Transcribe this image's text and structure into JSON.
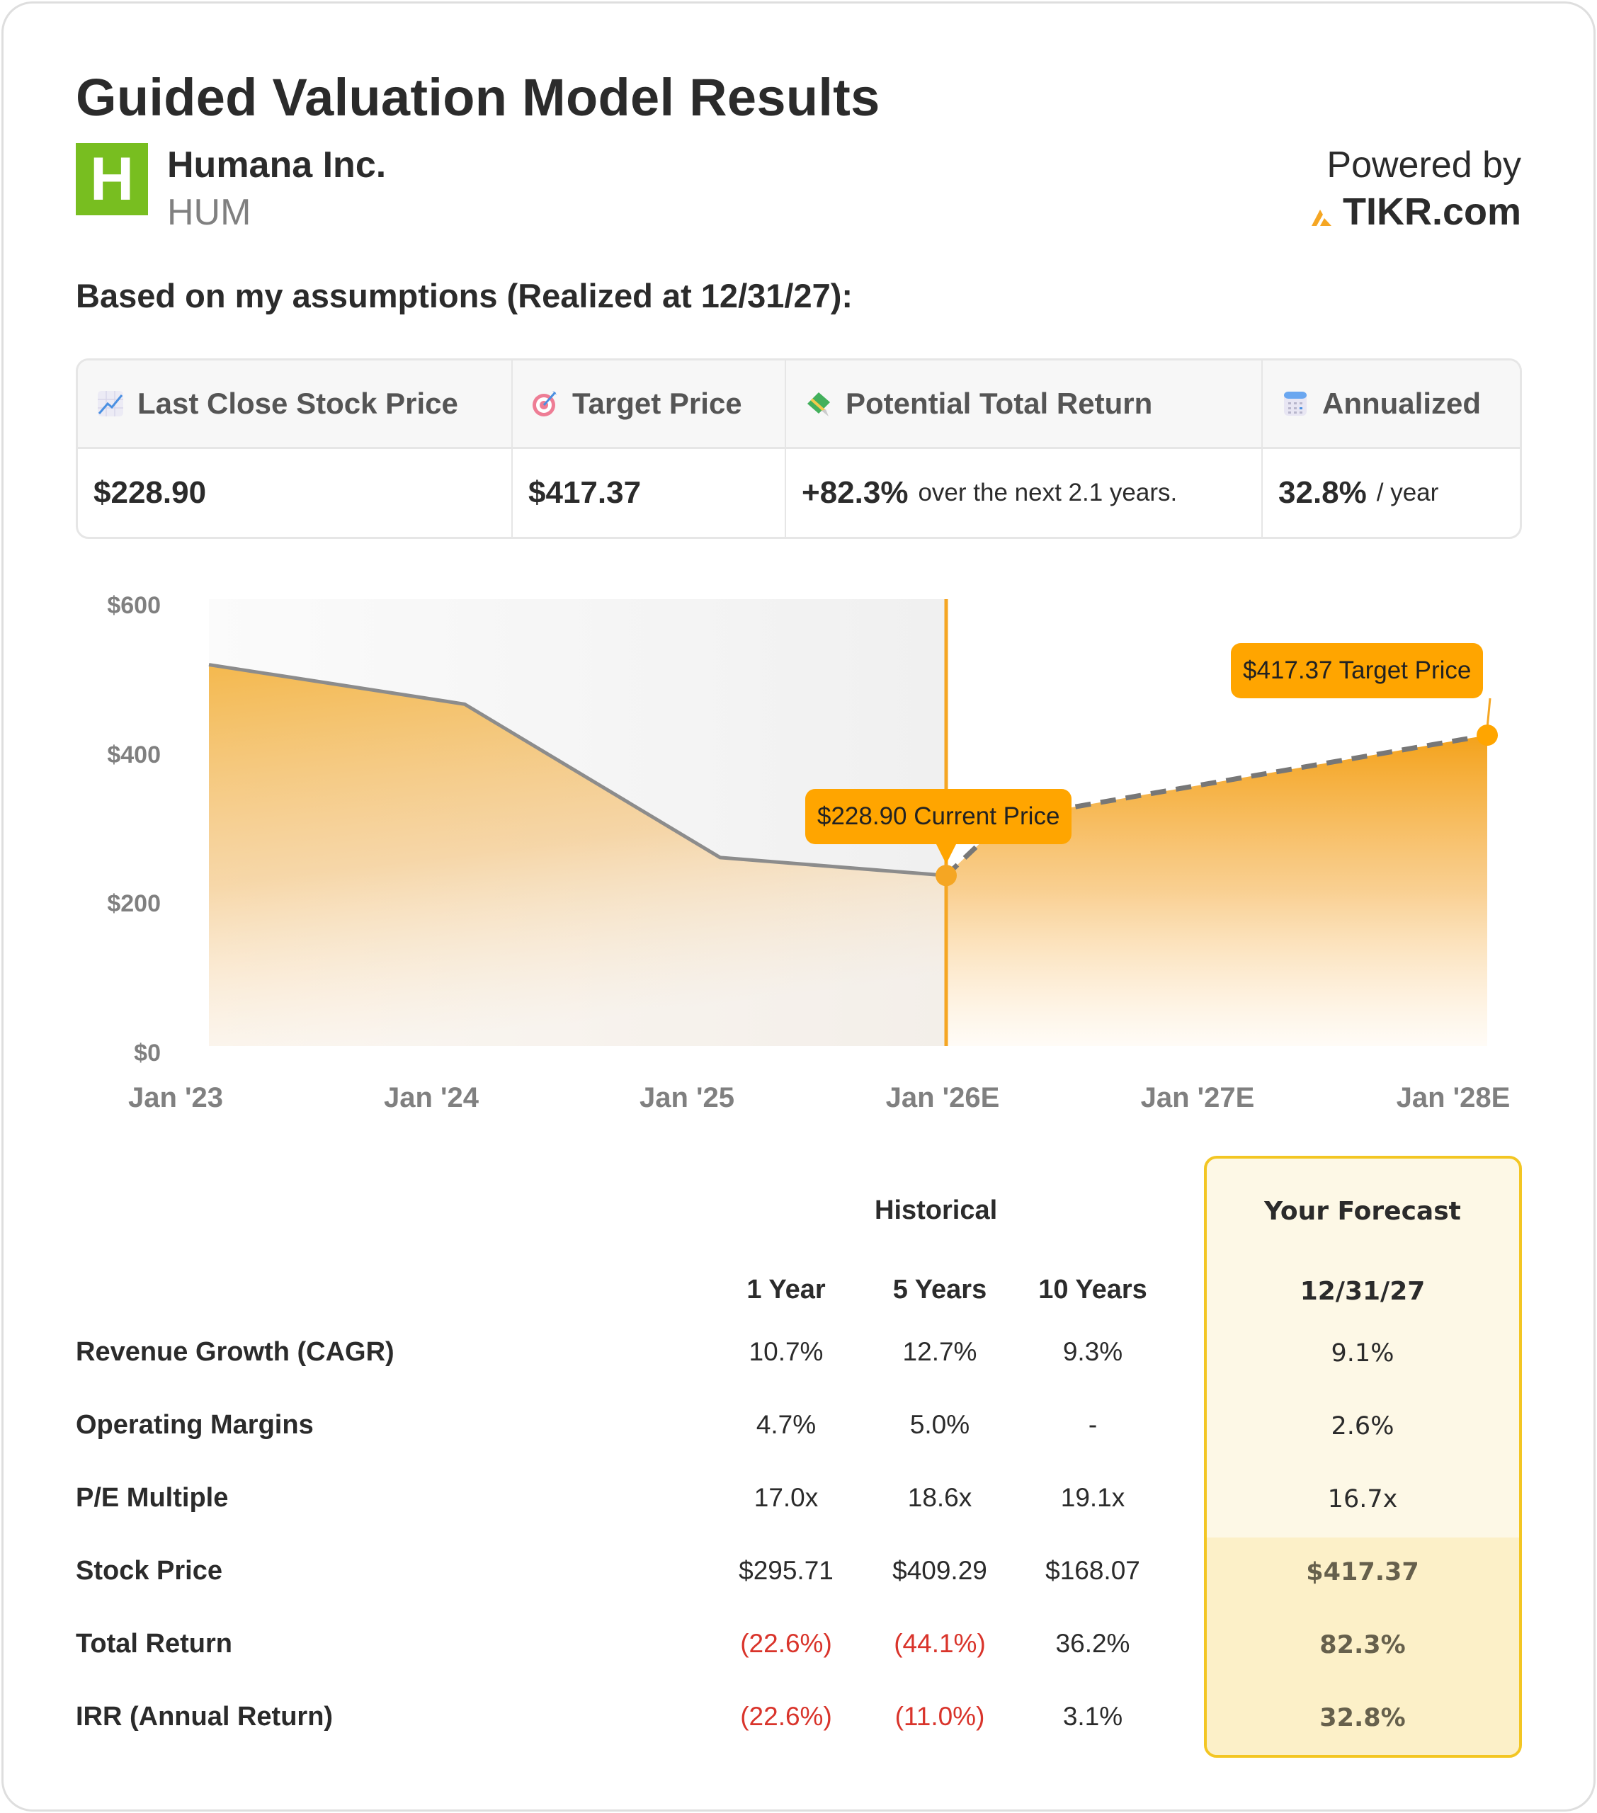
{
  "header": {
    "title": "Guided Valuation Model Results",
    "company_name": "Humana Inc.",
    "ticker": "HUM",
    "logo_letter": "H",
    "powered_by": "Powered by",
    "brand": "TIKR.com",
    "subtitle": "Based on my assumptions (Realized at 12/31/27):"
  },
  "summary": {
    "headers": [
      {
        "icon": "chart-increasing-icon",
        "label": "Last Close Stock Price"
      },
      {
        "icon": "target-icon",
        "label": "Target Price"
      },
      {
        "icon": "money-with-wings-icon",
        "label": "Potential Total Return"
      },
      {
        "icon": "calendar-icon",
        "label": "Annualized"
      }
    ],
    "last_close": "$228.90",
    "target_price": "$417.37",
    "total_return": "+82.3%",
    "total_return_suffix": "over the next 2.1 years.",
    "annualized": "32.8%",
    "annualized_suffix": "/ year"
  },
  "chart_data": {
    "type": "area",
    "title": "",
    "xlabel": "",
    "ylabel": "",
    "x_ticks": [
      "Jan '23",
      "Jan '24",
      "Jan '25",
      "Jan '26E",
      "Jan '27E",
      "Jan '28E"
    ],
    "y_ticks": [
      "$600",
      "$400",
      "$200",
      "$0"
    ],
    "ylim": [
      0,
      600
    ],
    "grid": false,
    "series": [
      {
        "name": "Historical",
        "style": "solid",
        "x": [
          "Jan '23",
          "Jan '24",
          "Jan '25",
          "Jan '26E"
        ],
        "values": [
          512,
          459,
          253,
          228.9
        ]
      },
      {
        "name": "Forecast",
        "style": "dashed",
        "x": [
          "Jan '26E",
          "Mar '26E",
          "Jan '28E"
        ],
        "values": [
          228.9,
          305,
          417.37
        ]
      }
    ],
    "annotations": [
      {
        "label": "$228.90 Current Price",
        "x": "Jan '26E",
        "y": 228.9
      },
      {
        "label": "$417.37 Target Price",
        "x": "Jan '28E",
        "y": 417.37
      }
    ],
    "divider_at": "Jan '26E",
    "colors": {
      "fill": "#f5b142",
      "line": "#8c8c8c",
      "marker": "#ffa500",
      "divider": "#f5a623",
      "historical_bg": "#f2f2f2"
    }
  },
  "table": {
    "historical_title": "Historical",
    "columns": [
      "1 Year",
      "5 Years",
      "10 Years"
    ],
    "forecast_title": "Your Forecast",
    "forecast_date": "12/31/27",
    "rows": [
      {
        "label": "Revenue Growth (CAGR)",
        "values": [
          "10.7%",
          "12.7%",
          "9.3%"
        ],
        "neg": [
          false,
          false,
          false
        ],
        "forecast": "9.1%"
      },
      {
        "label": "Operating Margins",
        "values": [
          "4.7%",
          "5.0%",
          "-"
        ],
        "neg": [
          false,
          false,
          false
        ],
        "forecast": "2.6%"
      },
      {
        "label": "P/E Multiple",
        "values": [
          "17.0x",
          "18.6x",
          "19.1x"
        ],
        "neg": [
          false,
          false,
          false
        ],
        "forecast": "16.7x"
      },
      {
        "label": "Stock Price",
        "values": [
          "$295.71",
          "$409.29",
          "$168.07"
        ],
        "neg": [
          false,
          false,
          false
        ],
        "forecast": "$417.37"
      },
      {
        "label": "Total Return",
        "values": [
          "(22.6%)",
          "(44.1%)",
          "36.2%"
        ],
        "neg": [
          true,
          true,
          false
        ],
        "forecast": "82.3%"
      },
      {
        "label": "IRR (Annual Return)",
        "values": [
          "(22.6%)",
          "(11.0%)",
          "3.1%"
        ],
        "neg": [
          true,
          true,
          false
        ],
        "forecast": "32.8%"
      }
    ]
  }
}
